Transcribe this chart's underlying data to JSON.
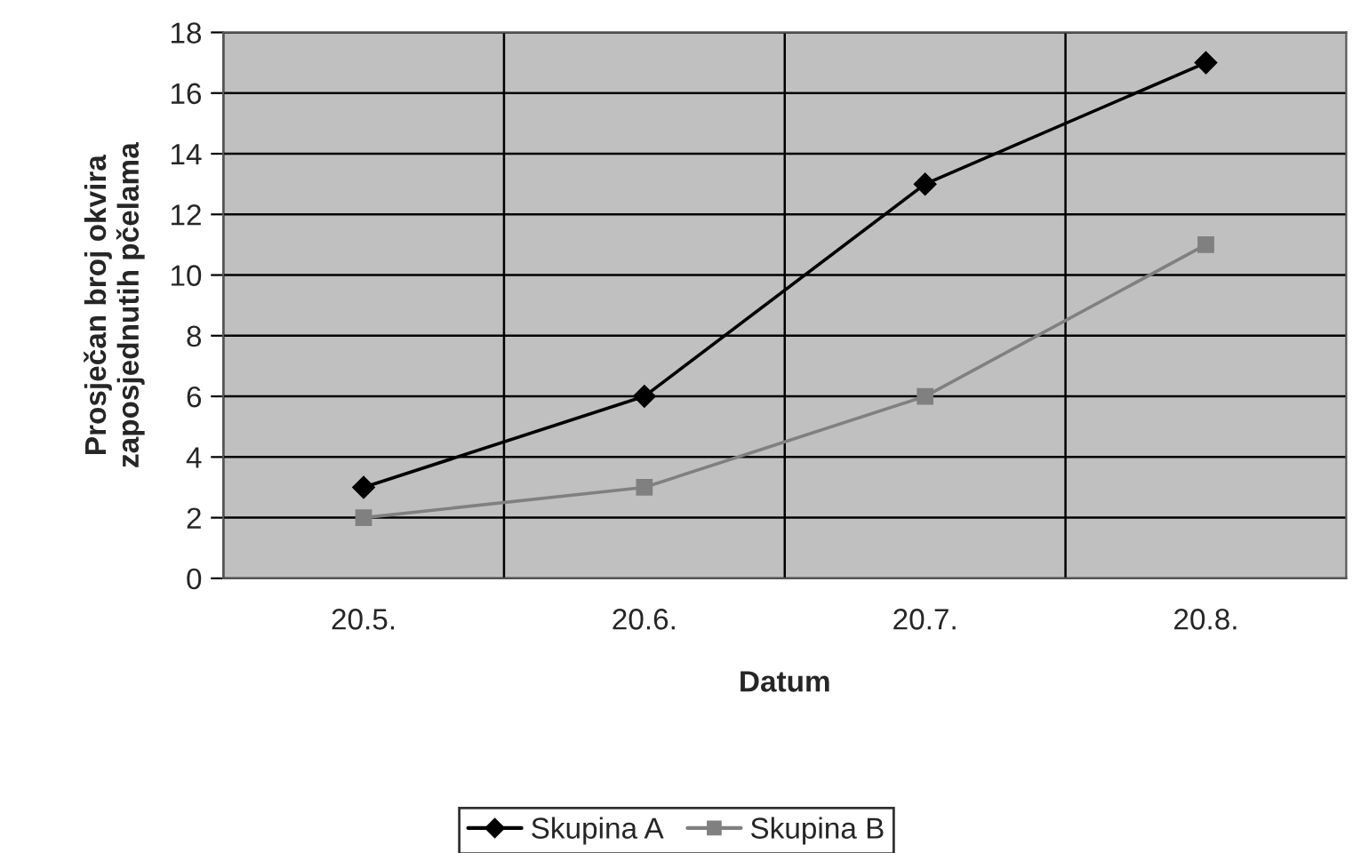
{
  "chart_data": {
    "type": "line",
    "xlabel": "Datum",
    "ylabel": "Prosječan broj okvira\nzaposjednutih pčelama",
    "categories": [
      "20.5.",
      "20.6.",
      "20.7.",
      "20.8."
    ],
    "series": [
      {
        "name": "Skupina A",
        "color": "#000000",
        "marker": "diamond",
        "values": [
          3,
          6,
          13,
          17
        ]
      },
      {
        "name": "Skupina B",
        "color": "#808080",
        "marker": "square",
        "values": [
          2,
          3,
          6,
          11
        ]
      }
    ],
    "ylim": [
      0,
      18
    ],
    "yticks": [
      0,
      2,
      4,
      6,
      8,
      10,
      12,
      14,
      16,
      18
    ],
    "grid": true,
    "legend": "bottom",
    "line_style": "solid"
  }
}
